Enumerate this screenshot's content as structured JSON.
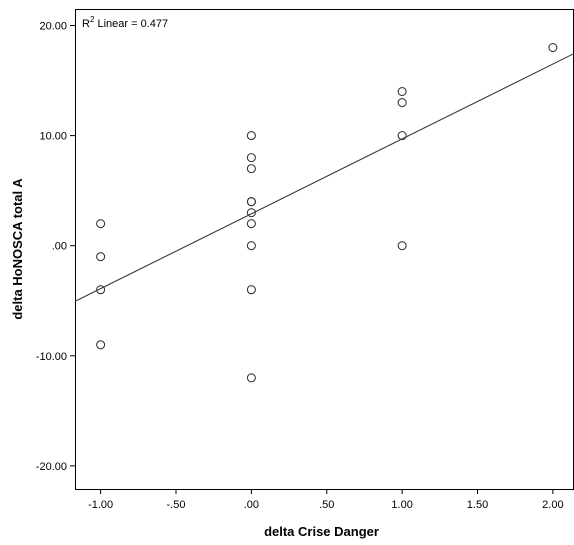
{
  "chart_data": {
    "type": "scatter",
    "title": "",
    "xlabel": "delta Crise Danger",
    "ylabel": "delta HoNOSCA total A",
    "xlim": [
      -1.17,
      2.14
    ],
    "ylim": [
      -22.1,
      21.5
    ],
    "x_ticks": [
      -1,
      -0.5,
      0,
      0.5,
      1,
      1.5,
      2
    ],
    "x_tick_labels": [
      "-1.00",
      "-.50",
      ".00",
      ".50",
      "1.00",
      "1.50",
      "2.00"
    ],
    "y_ticks": [
      20,
      10,
      0,
      -10,
      -20
    ],
    "y_tick_labels": [
      "20.00",
      "10.00",
      ".00",
      "-10.00",
      "-20.00"
    ],
    "annotation": {
      "prefix": "R",
      "superscript": "2",
      "suffix": " Linear = 0.477"
    },
    "fit_line": {
      "intercept": 2.9,
      "slope": 6.8
    },
    "grid": false,
    "legend": "none",
    "points": [
      {
        "x": -1,
        "y": 2
      },
      {
        "x": -1,
        "y": -1
      },
      {
        "x": -1,
        "y": -4
      },
      {
        "x": -1,
        "y": -9
      },
      {
        "x": 0,
        "y": 10
      },
      {
        "x": 0,
        "y": 8
      },
      {
        "x": 0,
        "y": 7
      },
      {
        "x": 0,
        "y": 4
      },
      {
        "x": 0,
        "y": 4
      },
      {
        "x": 0,
        "y": 3
      },
      {
        "x": 0,
        "y": 2
      },
      {
        "x": 0,
        "y": 0
      },
      {
        "x": 0,
        "y": -4
      },
      {
        "x": 0,
        "y": -12
      },
      {
        "x": 1,
        "y": 14
      },
      {
        "x": 1,
        "y": 13
      },
      {
        "x": 1,
        "y": 10
      },
      {
        "x": 1,
        "y": 0
      },
      {
        "x": 2,
        "y": 18
      }
    ],
    "colors": {
      "marker": "#3a3a3a",
      "line": "#3a3a3a",
      "axis": "#000000"
    }
  }
}
